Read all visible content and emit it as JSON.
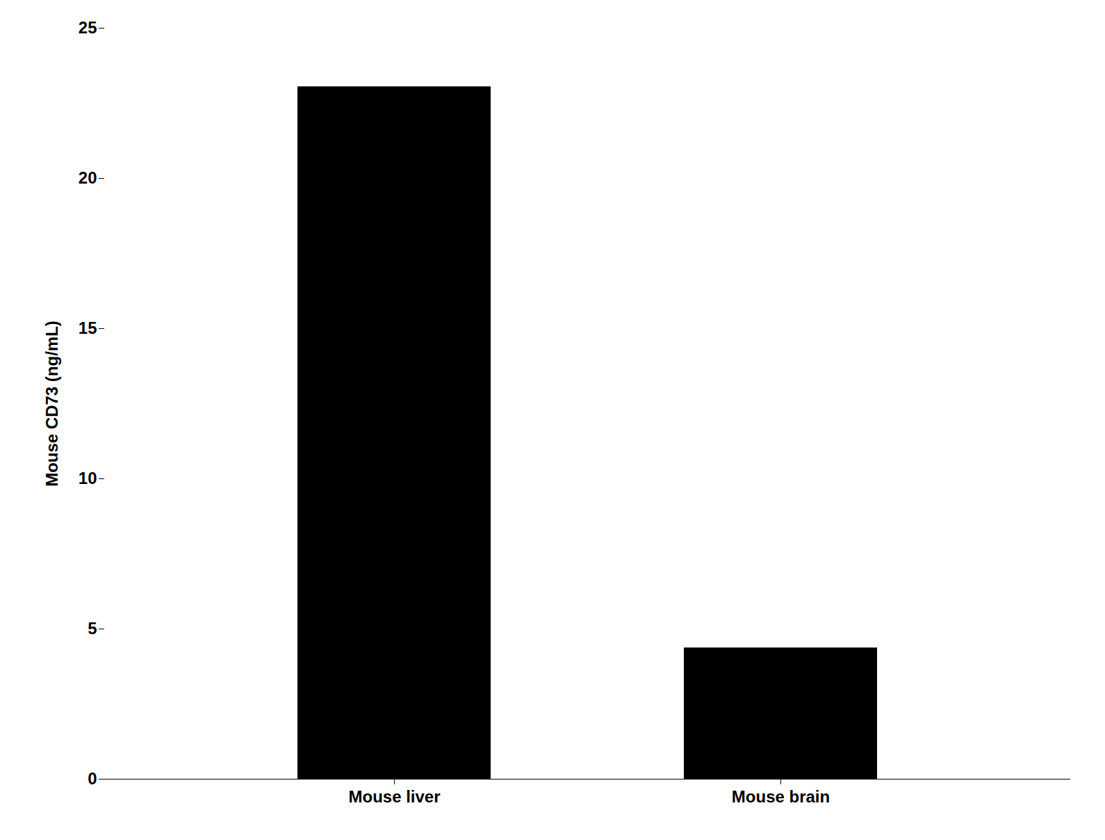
{
  "chart_data": {
    "type": "bar",
    "categories": [
      "Mouse liver",
      "Mouse brain"
    ],
    "values": [
      23.05,
      4.37
    ],
    "color": "#000000",
    "ylabel": "Mouse CD73 (ng/mL)",
    "ylim": [
      0,
      25
    ],
    "yticks": [
      0,
      5,
      10,
      15,
      20,
      25
    ]
  }
}
